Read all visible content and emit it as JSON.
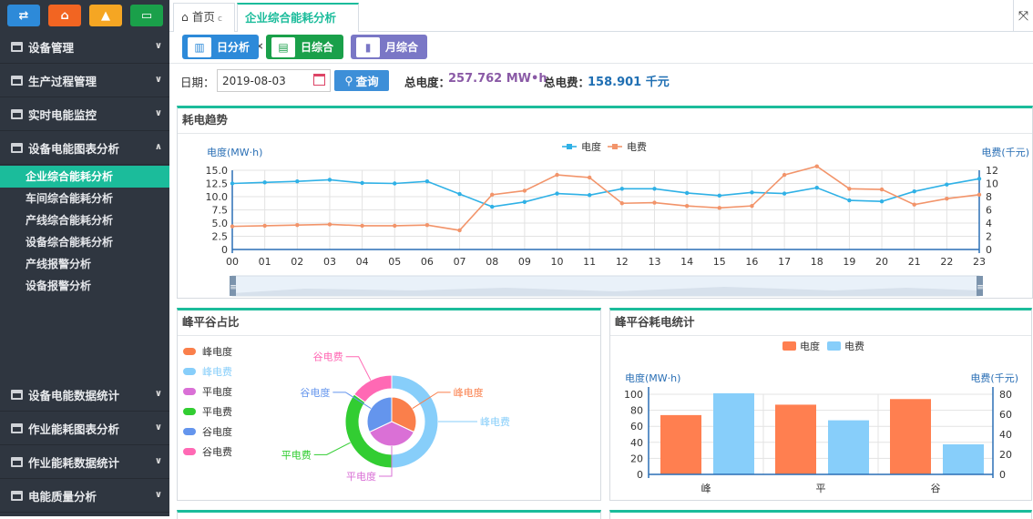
{
  "sidebar": {
    "top_icons": [
      {
        "name": "swap-icon",
        "color": "#2d8ad9",
        "glyph": "⇄"
      },
      {
        "name": "home-icon",
        "color": "#f26522",
        "glyph": "⌂"
      },
      {
        "name": "area-chart-icon",
        "color": "#f5a623",
        "glyph": "▲"
      },
      {
        "name": "monitor-icon",
        "color": "#1aa04a",
        "glyph": "▭"
      }
    ],
    "menu": [
      {
        "label": "设备管理",
        "arrow": "∨"
      },
      {
        "label": "生产过程管理",
        "arrow": "∨"
      },
      {
        "label": "实时电能监控",
        "arrow": "∨"
      },
      {
        "label": "设备电能图表分析",
        "arrow": "∧"
      },
      {
        "label": "设备电能数据统计",
        "arrow": "∨"
      },
      {
        "label": "作业能耗图表分析",
        "arrow": "∨"
      },
      {
        "label": "作业能耗数据统计",
        "arrow": "∨"
      },
      {
        "label": "电能质量分析",
        "arrow": "∨"
      }
    ],
    "submenu": [
      "企业综合能耗分析",
      "车间综合能耗分析",
      "产线综合能耗分析",
      "设备综合能耗分析",
      "产线报警分析",
      "设备报警分析"
    ]
  },
  "tabs": {
    "home": "首页",
    "current": "企业综合能耗分析",
    "refresh": "c",
    "close": "×"
  },
  "view_buttons": [
    {
      "label": "日分析",
      "color": "#2d8ad9",
      "icon": "building-icon",
      "glyph": "▥"
    },
    {
      "label": "日综合",
      "color": "#1aa04a",
      "icon": "newspaper-icon",
      "glyph": "▤"
    },
    {
      "label": "月综合",
      "color": "#7a77c6",
      "icon": "bar-chart-icon",
      "glyph": "▮"
    }
  ],
  "filter": {
    "date_label": "日期：",
    "date_value": "2019-08-03",
    "query_label": "查询",
    "total_energy_label": "总电度：",
    "total_energy_value": "257.762 MW•h",
    "total_cost_label": "总电费：",
    "total_cost_value": "158.901 千元"
  },
  "colors": {
    "accent": "#1bbc9b",
    "energy": "#2fb1e6",
    "cost": "#f2946a",
    "energy_value": "#8a5aa6",
    "cost_value": "#1f6fb3"
  },
  "trend_panel": {
    "title": "耗电趋势",
    "data_zoom_handle": "≡"
  },
  "ratio_panel": {
    "title": "峰平谷占比"
  },
  "stat_panel": {
    "title": "峰平谷耗电统计"
  },
  "chart_data": [
    {
      "type": "line",
      "title": "耗电趋势",
      "x": [
        "00",
        "01",
        "02",
        "03",
        "04",
        "05",
        "06",
        "07",
        "08",
        "09",
        "10",
        "11",
        "12",
        "13",
        "14",
        "15",
        "16",
        "17",
        "18",
        "19",
        "20",
        "21",
        "22",
        "23"
      ],
      "ylabel": "电度(MW·h)",
      "ylabel_right": "电费(千元)",
      "ylim": [
        0,
        15
      ],
      "ylim_right": [
        0,
        12
      ],
      "y_ticks": [
        "15.0",
        "12.5",
        "10.0",
        "7.5",
        "5.0",
        "2.5",
        "0"
      ],
      "y_right_ticks": [
        "12",
        "10",
        "8",
        "6",
        "4",
        "2",
        "0"
      ],
      "legend": [
        "电度",
        "电费"
      ],
      "series": [
        {
          "name": "电度",
          "axis": "left",
          "color": "#2fb1e6",
          "values": [
            12.5,
            12.7,
            12.9,
            13.2,
            12.6,
            12.5,
            12.9,
            10.5,
            8.1,
            9.0,
            10.6,
            10.3,
            11.5,
            11.5,
            10.7,
            10.2,
            10.8,
            10.6,
            11.7,
            9.3,
            9.1,
            11.0,
            12.3,
            13.4
          ]
        },
        {
          "name": "电费",
          "axis": "right",
          "color": "#f2946a",
          "values": [
            3.5,
            3.6,
            3.7,
            3.8,
            3.6,
            3.6,
            3.7,
            2.9,
            8.3,
            8.9,
            11.3,
            10.9,
            7.0,
            7.1,
            6.6,
            6.3,
            6.6,
            11.3,
            12.6,
            9.2,
            9.1,
            6.8,
            7.7,
            8.3
          ]
        }
      ],
      "grid": true
    },
    {
      "type": "pie",
      "title": "峰平谷占比",
      "legend": [
        "峰电度",
        "峰电费",
        "平电度",
        "平电费",
        "谷电度",
        "谷电费"
      ],
      "inner": [
        {
          "label": "峰电度",
          "value": 32,
          "color": "#fa7f4b"
        },
        {
          "label": "平电度",
          "value": 36,
          "color": "#da70d6"
        },
        {
          "label": "谷电度",
          "value": 32,
          "color": "#6495ed"
        }
      ],
      "outer": [
        {
          "label": "峰电费",
          "value": 50,
          "color": "#87cefa"
        },
        {
          "label": "平电费",
          "value": 35,
          "color": "#32cd32"
        },
        {
          "label": "谷电费",
          "value": 15,
          "color": "#ff69b4"
        }
      ]
    },
    {
      "type": "bar",
      "title": "峰平谷耗电统计",
      "categories": [
        "峰",
        "平",
        "谷"
      ],
      "ylabel": "电度(MW·h)",
      "ylabel_right": "电费(千元)",
      "ylim": [
        0,
        100
      ],
      "ylim_right": [
        0,
        80
      ],
      "y_ticks": [
        "100",
        "80",
        "60",
        "40",
        "20",
        "0"
      ],
      "y_right_ticks": [
        "80",
        "60",
        "40",
        "20",
        "0"
      ],
      "legend": [
        "电度",
        "电费"
      ],
      "series": [
        {
          "name": "电度",
          "axis": "left",
          "color": "#ff7f50",
          "values": [
            74,
            87,
            94
          ]
        },
        {
          "name": "电费",
          "axis": "right",
          "color": "#87cefa",
          "values": [
            81,
            54,
            30
          ]
        }
      ]
    }
  ]
}
